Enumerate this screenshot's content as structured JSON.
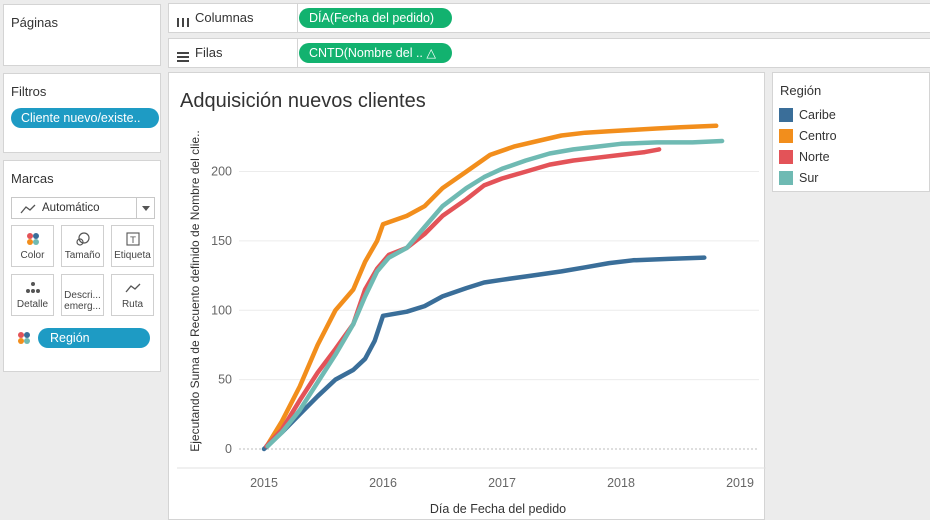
{
  "pages": {
    "title": "Páginas"
  },
  "filters": {
    "title": "Filtros",
    "pill": "Cliente nuevo/existe.."
  },
  "marks": {
    "title": "Marcas",
    "mark_type": "Automático",
    "buttons": {
      "color": "Color",
      "size": "Tamaño",
      "label": "Etiqueta",
      "detail": "Detalle",
      "tooltip_line1": "Descri...",
      "tooltip_line2": "emerg...",
      "path": "Ruta"
    },
    "color_pill": "Región"
  },
  "shelves": {
    "columns_label": "Columnas",
    "columns_pill": "DÍA(Fecha del pedido)",
    "rows_label": "Filas",
    "rows_pill": "CNTD(Nombre del .. △"
  },
  "legend": {
    "title": "Región",
    "items": [
      {
        "name": "Caribe",
        "color": "#3a6e99"
      },
      {
        "name": "Centro",
        "color": "#f28e1c"
      },
      {
        "name": "Norte",
        "color": "#e35358"
      },
      {
        "name": "Sur",
        "color": "#6fbab3"
      }
    ]
  },
  "chart_data": {
    "type": "line",
    "title": "Adquisición nuevos clientes",
    "xlabel": "Día de Fecha del pedido",
    "ylabel": "Ejecutando Suma de Recuento definido de Nombre del clie..",
    "xlim": [
      2015,
      2019
    ],
    "ylim": [
      0,
      235
    ],
    "x_ticks": [
      "2015",
      "2016",
      "2017",
      "2018",
      "2019"
    ],
    "y_ticks": [
      0,
      50,
      100,
      150,
      200
    ],
    "grid": true,
    "series": [
      {
        "name": "Caribe",
        "color": "#3a6e99",
        "x": [
          2015.0,
          2015.15,
          2015.3,
          2015.45,
          2015.6,
          2015.75,
          2015.85,
          2015.93,
          2016.0,
          2016.2,
          2016.35,
          2016.5,
          2016.7,
          2016.85,
          2017.0,
          2017.25,
          2017.5,
          2017.7,
          2017.9,
          2018.1,
          2018.4,
          2018.7
        ],
        "y": [
          0,
          12,
          25,
          38,
          50,
          57,
          65,
          78,
          96,
          99,
          103,
          110,
          116,
          120,
          122,
          125,
          128,
          131,
          134,
          136,
          137,
          138
        ]
      },
      {
        "name": "Centro",
        "color": "#f28e1c",
        "x": [
          2015.03,
          2015.15,
          2015.3,
          2015.45,
          2015.6,
          2015.75,
          2015.85,
          2015.95,
          2016.0,
          2016.2,
          2016.35,
          2016.5,
          2016.7,
          2016.9,
          2017.1,
          2017.3,
          2017.5,
          2017.7,
          2017.9,
          2018.1,
          2018.3,
          2018.5,
          2018.8
        ],
        "y": [
          3,
          20,
          45,
          75,
          100,
          115,
          135,
          150,
          162,
          168,
          175,
          188,
          200,
          212,
          218,
          222,
          226,
          228,
          229,
          230,
          231,
          232,
          233
        ]
      },
      {
        "name": "Norte",
        "color": "#e35358",
        "x": [
          2015.02,
          2015.15,
          2015.3,
          2015.45,
          2015.6,
          2015.75,
          2015.85,
          2015.95,
          2016.05,
          2016.2,
          2016.35,
          2016.5,
          2016.7,
          2016.85,
          2017.0,
          2017.2,
          2017.4,
          2017.6,
          2017.8,
          2018.0,
          2018.2,
          2018.32
        ],
        "y": [
          2,
          14,
          35,
          55,
          72,
          90,
          115,
          130,
          140,
          145,
          155,
          168,
          180,
          190,
          195,
          200,
          205,
          208,
          210,
          212,
          214,
          216
        ]
      },
      {
        "name": "Sur",
        "color": "#6fbab3",
        "x": [
          2015.03,
          2015.15,
          2015.3,
          2015.45,
          2015.6,
          2015.75,
          2015.85,
          2015.95,
          2016.05,
          2016.2,
          2016.35,
          2016.5,
          2016.7,
          2016.85,
          2017.0,
          2017.2,
          2017.4,
          2017.6,
          2017.8,
          2018.0,
          2018.3,
          2018.6,
          2018.85
        ],
        "y": [
          2,
          12,
          28,
          48,
          68,
          90,
          110,
          128,
          138,
          145,
          160,
          175,
          188,
          196,
          202,
          208,
          213,
          216,
          218,
          220,
          221,
          221,
          222
        ]
      }
    ]
  }
}
